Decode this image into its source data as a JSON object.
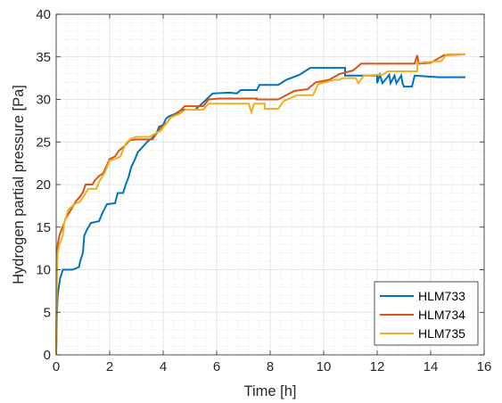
{
  "chart_data": {
    "type": "line",
    "xlabel": "Time [h]",
    "ylabel": "Hydrogen partial pressure [Pa]",
    "xlim": [
      0,
      16
    ],
    "ylim": [
      0,
      40
    ],
    "x_ticks": [
      0,
      2,
      4,
      6,
      8,
      10,
      12,
      14,
      16
    ],
    "y_ticks": [
      0,
      5,
      10,
      15,
      20,
      25,
      30,
      35,
      40
    ],
    "grid": true,
    "minor_grid": true,
    "legend_position": "bottom-right",
    "series": [
      {
        "name": "HLM733",
        "color": "#0072BD",
        "points": [
          [
            0,
            0
          ],
          [
            0.03,
            5
          ],
          [
            0.06,
            7
          ],
          [
            0.1,
            8
          ],
          [
            0.15,
            9
          ],
          [
            0.25,
            10
          ],
          [
            0.5,
            10
          ],
          [
            0.6,
            10
          ],
          [
            0.85,
            10.3
          ],
          [
            0.9,
            11
          ],
          [
            1.0,
            12
          ],
          [
            1.05,
            14
          ],
          [
            1.15,
            14.7
          ],
          [
            1.3,
            15.5
          ],
          [
            1.6,
            15.7
          ],
          [
            1.75,
            16.8
          ],
          [
            1.9,
            17.7
          ],
          [
            2.2,
            17.8
          ],
          [
            2.3,
            19
          ],
          [
            2.5,
            19
          ],
          [
            2.6,
            20
          ],
          [
            2.7,
            20.8
          ],
          [
            2.8,
            22
          ],
          [
            2.95,
            23
          ],
          [
            3.05,
            23.8
          ],
          [
            3.2,
            24.3
          ],
          [
            3.4,
            25
          ],
          [
            3.6,
            25.5
          ],
          [
            3.75,
            26
          ],
          [
            3.85,
            26.8
          ],
          [
            4.0,
            27
          ],
          [
            4.1,
            27.7
          ],
          [
            4.2,
            28
          ],
          [
            4.45,
            28.3
          ],
          [
            4.65,
            28.7
          ],
          [
            4.8,
            28.8
          ],
          [
            5.2,
            28.8
          ],
          [
            5.45,
            29.5
          ],
          [
            5.85,
            30.7
          ],
          [
            6.5,
            30.8
          ],
          [
            6.75,
            30.7
          ],
          [
            6.9,
            31.1
          ],
          [
            7.5,
            31.1
          ],
          [
            7.6,
            31.7
          ],
          [
            8.3,
            31.7
          ],
          [
            8.6,
            32.3
          ],
          [
            9.1,
            32.9
          ],
          [
            9.5,
            33.7
          ],
          [
            10.8,
            33.7
          ],
          [
            10.8,
            32.8
          ],
          [
            12.0,
            32.8
          ],
          [
            12.0,
            31.9
          ],
          [
            12.1,
            32.9
          ],
          [
            12.2,
            31.9
          ],
          [
            12.45,
            32.9
          ],
          [
            12.5,
            31.9
          ],
          [
            12.65,
            32.8
          ],
          [
            12.72,
            31.9
          ],
          [
            12.9,
            32.8
          ],
          [
            12.95,
            31.9
          ],
          [
            13.0,
            31.5
          ],
          [
            13.3,
            31.5
          ],
          [
            13.4,
            32.8
          ],
          [
            14.3,
            32.6
          ],
          [
            15.3,
            32.6
          ]
        ]
      },
      {
        "name": "HLM734",
        "color": "#D95319",
        "points": [
          [
            0,
            0
          ],
          [
            0.03,
            12
          ],
          [
            0.06,
            13
          ],
          [
            0.12,
            14
          ],
          [
            0.3,
            15.5
          ],
          [
            0.35,
            16
          ],
          [
            0.45,
            16.5
          ],
          [
            0.6,
            17.3
          ],
          [
            0.75,
            18.1
          ],
          [
            0.9,
            18.6
          ],
          [
            1.0,
            19.1
          ],
          [
            1.1,
            20
          ],
          [
            1.35,
            20
          ],
          [
            1.45,
            20.5
          ],
          [
            1.6,
            21
          ],
          [
            1.75,
            21.3
          ],
          [
            1.9,
            22.3
          ],
          [
            2.0,
            23
          ],
          [
            2.2,
            23.3
          ],
          [
            2.35,
            24
          ],
          [
            2.55,
            24.5
          ],
          [
            2.75,
            25.2
          ],
          [
            3.0,
            25.3
          ],
          [
            3.6,
            25.3
          ],
          [
            3.75,
            26
          ],
          [
            3.95,
            26.8
          ],
          [
            4.15,
            27.3
          ],
          [
            4.3,
            28
          ],
          [
            4.55,
            28.4
          ],
          [
            4.8,
            29.2
          ],
          [
            5.5,
            29.2
          ],
          [
            5.7,
            30
          ],
          [
            6.1,
            30.1
          ],
          [
            7.5,
            30.1
          ],
          [
            7.5,
            30
          ],
          [
            8.3,
            30
          ],
          [
            8.9,
            31
          ],
          [
            9.4,
            31.2
          ],
          [
            9.7,
            32
          ],
          [
            10.2,
            32.3
          ],
          [
            10.6,
            33
          ],
          [
            11.1,
            33.4
          ],
          [
            11.4,
            34.2
          ],
          [
            13.4,
            34.2
          ],
          [
            13.5,
            35.2
          ],
          [
            13.55,
            34.2
          ],
          [
            14.0,
            34.3
          ],
          [
            14.5,
            35.2
          ],
          [
            15.3,
            35.3
          ]
        ]
      },
      {
        "name": "HLM735",
        "color": "#EDB120",
        "points": [
          [
            0,
            0
          ],
          [
            0.03,
            10
          ],
          [
            0.06,
            12
          ],
          [
            0.12,
            13
          ],
          [
            0.25,
            14
          ],
          [
            0.3,
            15.5
          ],
          [
            0.45,
            17
          ],
          [
            0.6,
            17.5
          ],
          [
            0.75,
            17.8
          ],
          [
            0.9,
            18
          ],
          [
            1.0,
            18.5
          ],
          [
            1.2,
            19.5
          ],
          [
            1.5,
            19.5
          ],
          [
            1.6,
            20.3
          ],
          [
            1.8,
            21.3
          ],
          [
            2.0,
            22.8
          ],
          [
            2.2,
            23
          ],
          [
            2.4,
            23.3
          ],
          [
            2.6,
            24.8
          ],
          [
            2.75,
            25.3
          ],
          [
            3.0,
            25.6
          ],
          [
            3.5,
            25.6
          ],
          [
            3.7,
            26
          ],
          [
            3.9,
            26.3
          ],
          [
            4.1,
            27.1
          ],
          [
            4.3,
            27.9
          ],
          [
            4.6,
            28.3
          ],
          [
            4.85,
            28.8
          ],
          [
            5.5,
            28.8
          ],
          [
            5.7,
            29.5
          ],
          [
            7.2,
            29.5
          ],
          [
            7.3,
            28.5
          ],
          [
            7.4,
            29.5
          ],
          [
            7.8,
            29.5
          ],
          [
            7.8,
            28.9
          ],
          [
            8.3,
            28.9
          ],
          [
            8.5,
            29.8
          ],
          [
            9.0,
            30.5
          ],
          [
            9.6,
            30.5
          ],
          [
            9.8,
            31.8
          ],
          [
            10.4,
            32.3
          ],
          [
            10.6,
            32.3
          ],
          [
            10.7,
            32.5
          ],
          [
            11.2,
            32.5
          ],
          [
            11.3,
            31.9
          ],
          [
            11.5,
            32.8
          ],
          [
            12.2,
            32.9
          ],
          [
            12.4,
            33.3
          ],
          [
            13.5,
            33.3
          ],
          [
            13.5,
            34.3
          ],
          [
            14.4,
            34.5
          ],
          [
            14.6,
            35.3
          ],
          [
            15.3,
            35.3
          ]
        ]
      }
    ]
  }
}
